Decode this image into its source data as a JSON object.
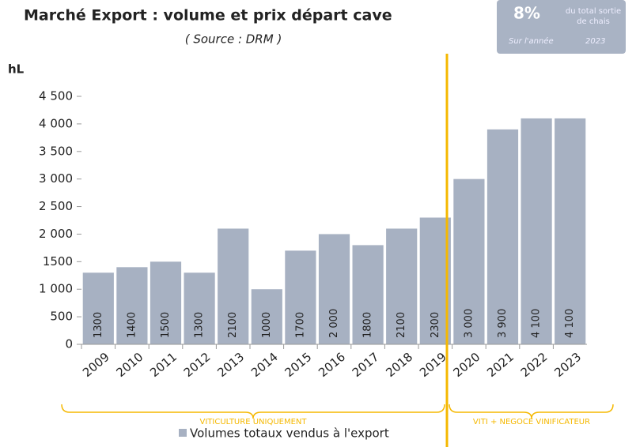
{
  "chart_data": {
    "type": "bar",
    "title": "Marché Export : volume et prix départ cave",
    "subtitle": "( Source : DRM )",
    "y_label": "hL",
    "categories": [
      "2009",
      "2010",
      "2011",
      "2012",
      "2013",
      "2014",
      "2015",
      "2016",
      "2017",
      "2018",
      "2019",
      "2020",
      "2021",
      "2022",
      "2023"
    ],
    "series": [
      {
        "name": "Volumes totaux vendus à l'export",
        "color": "#a7b1c2",
        "values": [
          1300,
          1400,
          1500,
          1300,
          2100,
          1000,
          1700,
          2000,
          1800,
          2100,
          2300,
          3000,
          3900,
          4100,
          4100
        ],
        "value_labels": [
          "1300",
          "1400",
          "1500",
          "1300",
          "2100",
          "1000",
          "1700",
          "2 000",
          "1800",
          "2100",
          "2300",
          "3 000",
          "3 900",
          "4 100",
          "4 100"
        ]
      }
    ],
    "ylim": [
      0,
      4500
    ],
    "yticks": [
      0,
      500,
      {
        "value": 1000,
        "label": "1 000"
      },
      {
        "value": 1500,
        "label": "1500"
      },
      {
        "value": 2000,
        "label": "2 000"
      },
      {
        "value": 2500,
        "label": "2 500"
      },
      {
        "value": 3000,
        "label": "3 000"
      },
      {
        "value": 3500,
        "label": "3 500"
      },
      {
        "value": 4000,
        "label": "4 000"
      },
      {
        "value": 4500,
        "label": "4 500"
      }
    ],
    "annotations": [
      "VITICULTURE UNIQUEMENT",
      "VITI + NEGOCE VINIFICATEUR"
    ],
    "badge": {
      "value": "8%",
      "caption": [
        "du total sortie",
        "de chais"
      ],
      "period_label": "Sur l'année",
      "year": "2023"
    }
  }
}
